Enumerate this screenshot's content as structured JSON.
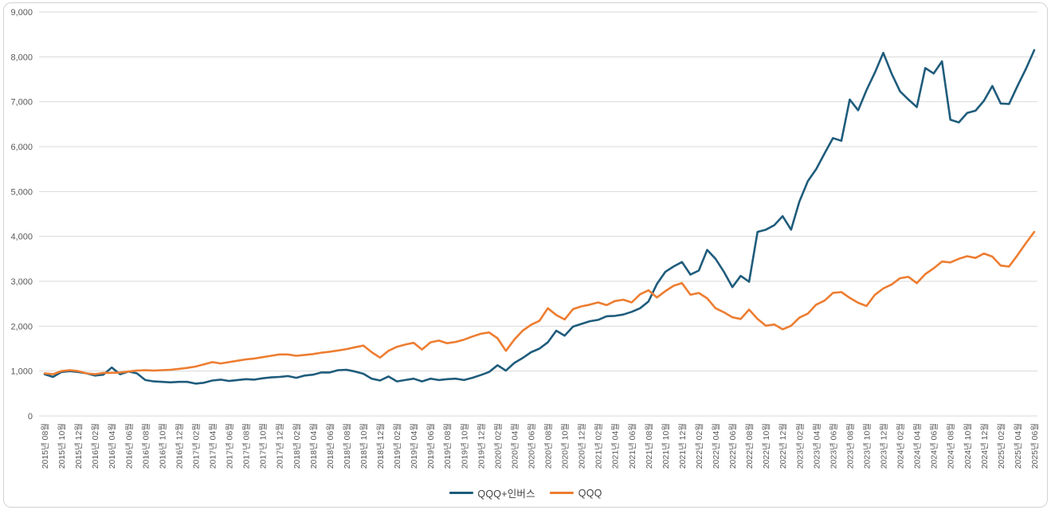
{
  "chart_data": {
    "type": "line",
    "title": "",
    "xlabel": "",
    "ylabel": "",
    "ylim": [
      0,
      9000
    ],
    "grid": "horizontal",
    "legend_position": "bottom-center",
    "colors": {
      "grid": "#d9d9d9",
      "axis_text": "#595959",
      "legend_text": "#404040",
      "frame_border": "#d2d2d7",
      "background": "#ffffff"
    },
    "y_ticks": [
      "0",
      "1,000",
      "2,000",
      "3,000",
      "4,000",
      "5,000",
      "6,000",
      "7,000",
      "8,000",
      "9,000"
    ],
    "x_unit": "month",
    "x_start": "2015년 08월",
    "x_end": "2025년 06월",
    "points_per_label": 2,
    "x_labels": [
      "2015년 08월",
      "2015년 10월",
      "2015년 12월",
      "2016년 02월",
      "2016년 04월",
      "2016년 06월",
      "2016년 08월",
      "2016년 10월",
      "2016년 12월",
      "2017년 02월",
      "2017년 04월",
      "2017년 06월",
      "2017년 08월",
      "2017년 10월",
      "2017년 12월",
      "2018년 02월",
      "2018년 04월",
      "2018년 06월",
      "2018년 08월",
      "2018년 10월",
      "2018년 12월",
      "2019년 02월",
      "2019년 04월",
      "2019년 06월",
      "2019년 08월",
      "2019년 10월",
      "2019년 12월",
      "2020년 02월",
      "2020년 04월",
      "2020년 06월",
      "2020년 08월",
      "2020년 10월",
      "2020년 12월",
      "2021년 02월",
      "2021년 04월",
      "2021년 06월",
      "2021년 08월",
      "2021년 10월",
      "2021년 12월",
      "2022년 02월",
      "2022년 04월",
      "2022년 06월",
      "2022년 08월",
      "2022년 10월",
      "2022년 12월",
      "2023년 02월",
      "2023년 04월",
      "2023년 06월",
      "2023년 08월",
      "2023년 10월",
      "2023년 12월",
      "2024년 02월",
      "2024년 04월",
      "2024년 06월",
      "2024년 08월",
      "2024년 10월",
      "2024년 12월",
      "2025년 02월",
      "2025년 04월",
      "2025년 06월"
    ],
    "series": [
      {
        "name": "QQQ+인버스",
        "color": "#1f5c7c",
        "values": [
          930,
          870,
          980,
          1000,
          980,
          950,
          900,
          920,
          1080,
          930,
          990,
          950,
          800,
          770,
          760,
          750,
          760,
          760,
          720,
          740,
          790,
          810,
          780,
          800,
          820,
          810,
          840,
          860,
          870,
          890,
          850,
          900,
          920,
          970,
          970,
          1020,
          1030,
          990,
          940,
          830,
          790,
          880,
          770,
          800,
          830,
          770,
          830,
          800,
          820,
          830,
          800,
          850,
          910,
          980,
          1130,
          1010,
          1180,
          1290,
          1420,
          1500,
          1640,
          1900,
          1790,
          1990,
          2050,
          2110,
          2140,
          2220,
          2230,
          2260,
          2320,
          2400,
          2550,
          2940,
          3210,
          3330,
          3430,
          3150,
          3240,
          3700,
          3500,
          3210,
          2870,
          3120,
          2990,
          4100,
          4150,
          4250,
          4450,
          4150,
          4780,
          5230,
          5500,
          5850,
          6190,
          6130,
          7050,
          6810,
          7260,
          7650,
          8090,
          7620,
          7230,
          7050,
          6880,
          7750,
          7630,
          7900,
          6600,
          6540,
          6750,
          6800,
          7020,
          7350,
          6960,
          6950,
          7350,
          7730,
          8150
        ]
      },
      {
        "name": "QQQ",
        "color": "#ed7d31",
        "values": [
          950,
          930,
          1000,
          1020,
          1000,
          950,
          930,
          960,
          960,
          970,
          990,
          1010,
          1020,
          1010,
          1020,
          1030,
          1050,
          1070,
          1100,
          1150,
          1200,
          1170,
          1200,
          1230,
          1260,
          1280,
          1310,
          1340,
          1370,
          1370,
          1340,
          1360,
          1380,
          1410,
          1430,
          1460,
          1490,
          1530,
          1570,
          1420,
          1300,
          1450,
          1540,
          1590,
          1630,
          1480,
          1640,
          1680,
          1620,
          1650,
          1700,
          1770,
          1830,
          1860,
          1730,
          1450,
          1700,
          1900,
          2030,
          2120,
          2400,
          2250,
          2150,
          2380,
          2440,
          2480,
          2530,
          2470,
          2560,
          2590,
          2530,
          2710,
          2800,
          2640,
          2780,
          2900,
          2960,
          2700,
          2740,
          2620,
          2400,
          2310,
          2200,
          2160,
          2370,
          2160,
          2010,
          2040,
          1930,
          2010,
          2190,
          2280,
          2480,
          2570,
          2740,
          2760,
          2630,
          2520,
          2450,
          2700,
          2840,
          2930,
          3070,
          3100,
          2960,
          3160,
          3290,
          3440,
          3420,
          3500,
          3560,
          3520,
          3620,
          3550,
          3350,
          3330,
          3580,
          3850,
          4100
        ]
      }
    ]
  },
  "legend": {
    "items": [
      {
        "label": "QQQ+인버스"
      },
      {
        "label": "QQQ"
      }
    ]
  }
}
